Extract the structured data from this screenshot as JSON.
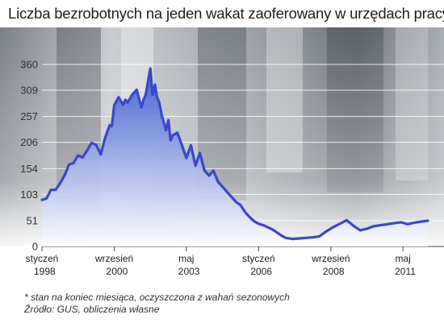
{
  "title": "Liczba bezrobotnych na jeden wakat zaoferowany w urzędach pracy*",
  "footnote": "* stan na koniec miesiąca, oczyszczona z wahań sezonowych",
  "source": "Źródło: GUS, obliczenia własne",
  "colors": {
    "line": "#3a48c8",
    "fill_top": "#3a5ad0",
    "fill_bottom": "#ffffff",
    "grid": "#ffffff"
  },
  "chart_data": {
    "type": "area",
    "title": "Liczba bezrobotnych na jeden wakat zaoferowany w urzędach pracy*",
    "xlabel": "",
    "ylabel": "",
    "ylim": [
      0,
      360
    ],
    "yticks": [
      0,
      51,
      103,
      154,
      206,
      257,
      309,
      360
    ],
    "xticks": [
      {
        "x": 1998.0,
        "line1": "styczeń",
        "line2": "1998"
      },
      {
        "x": 2000.67,
        "line1": "wrzesień",
        "line2": "2000"
      },
      {
        "x": 2003.33,
        "line1": "maj",
        "line2": "2003"
      },
      {
        "x": 2006.0,
        "line1": "styczeń",
        "line2": "2006"
      },
      {
        "x": 2008.67,
        "line1": "wrzesień",
        "line2": "2008"
      },
      {
        "x": 2011.33,
        "line1": "maj",
        "line2": "2011"
      }
    ],
    "xlim": [
      1998.0,
      2012.25
    ],
    "grid": true,
    "series": [
      {
        "x": [
          1998.0,
          1998.17,
          1998.33,
          1998.5,
          1998.67,
          1998.83,
          1999.0,
          1999.17,
          1999.33,
          1999.5,
          1999.67,
          1999.83,
          2000.0,
          2000.17,
          2000.33,
          2000.5,
          2000.58,
          2000.67,
          2000.83,
          2001.0,
          2001.08,
          2001.17,
          2001.33,
          2001.5,
          2001.67,
          2001.75,
          2001.83,
          2002.0,
          2002.08,
          2002.17,
          2002.25,
          2002.33,
          2002.42,
          2002.5,
          2002.58,
          2002.67,
          2002.75,
          2002.83,
          2003.0,
          2003.17,
          2003.33,
          2003.5,
          2003.67,
          2003.83,
          2004.0,
          2004.17,
          2004.33,
          2004.5,
          2004.67,
          2004.83,
          2005.0,
          2005.17,
          2005.33,
          2005.5,
          2005.67,
          2005.83,
          2006.0,
          2006.17,
          2006.33,
          2006.5,
          2006.67,
          2006.83,
          2007.0,
          2007.25,
          2007.5,
          2007.75,
          2008.0,
          2008.25,
          2008.5,
          2008.75,
          2009.0,
          2009.25,
          2009.5,
          2009.75,
          2010.0,
          2010.25,
          2010.5,
          2010.75,
          2011.0,
          2011.25,
          2011.5,
          2011.75,
          2012.0,
          2012.25
        ],
        "values": [
          92,
          95,
          112,
          112,
          125,
          140,
          162,
          165,
          180,
          176,
          190,
          205,
          201,
          182,
          215,
          240,
          238,
          280,
          295,
          280,
          290,
          285,
          300,
          310,
          275,
          290,
          300,
          352,
          300,
          320,
          295,
          285,
          260,
          245,
          230,
          250,
          210,
          220,
          225,
          200,
          175,
          200,
          160,
          185,
          150,
          140,
          150,
          128,
          118,
          108,
          98,
          88,
          82,
          68,
          58,
          50,
          45,
          42,
          38,
          34,
          28,
          22,
          17,
          15,
          16,
          17,
          18,
          20,
          30,
          38,
          45,
          52,
          41,
          32,
          35,
          40,
          42,
          44,
          46,
          48,
          44,
          47,
          49,
          51
        ]
      }
    ]
  }
}
